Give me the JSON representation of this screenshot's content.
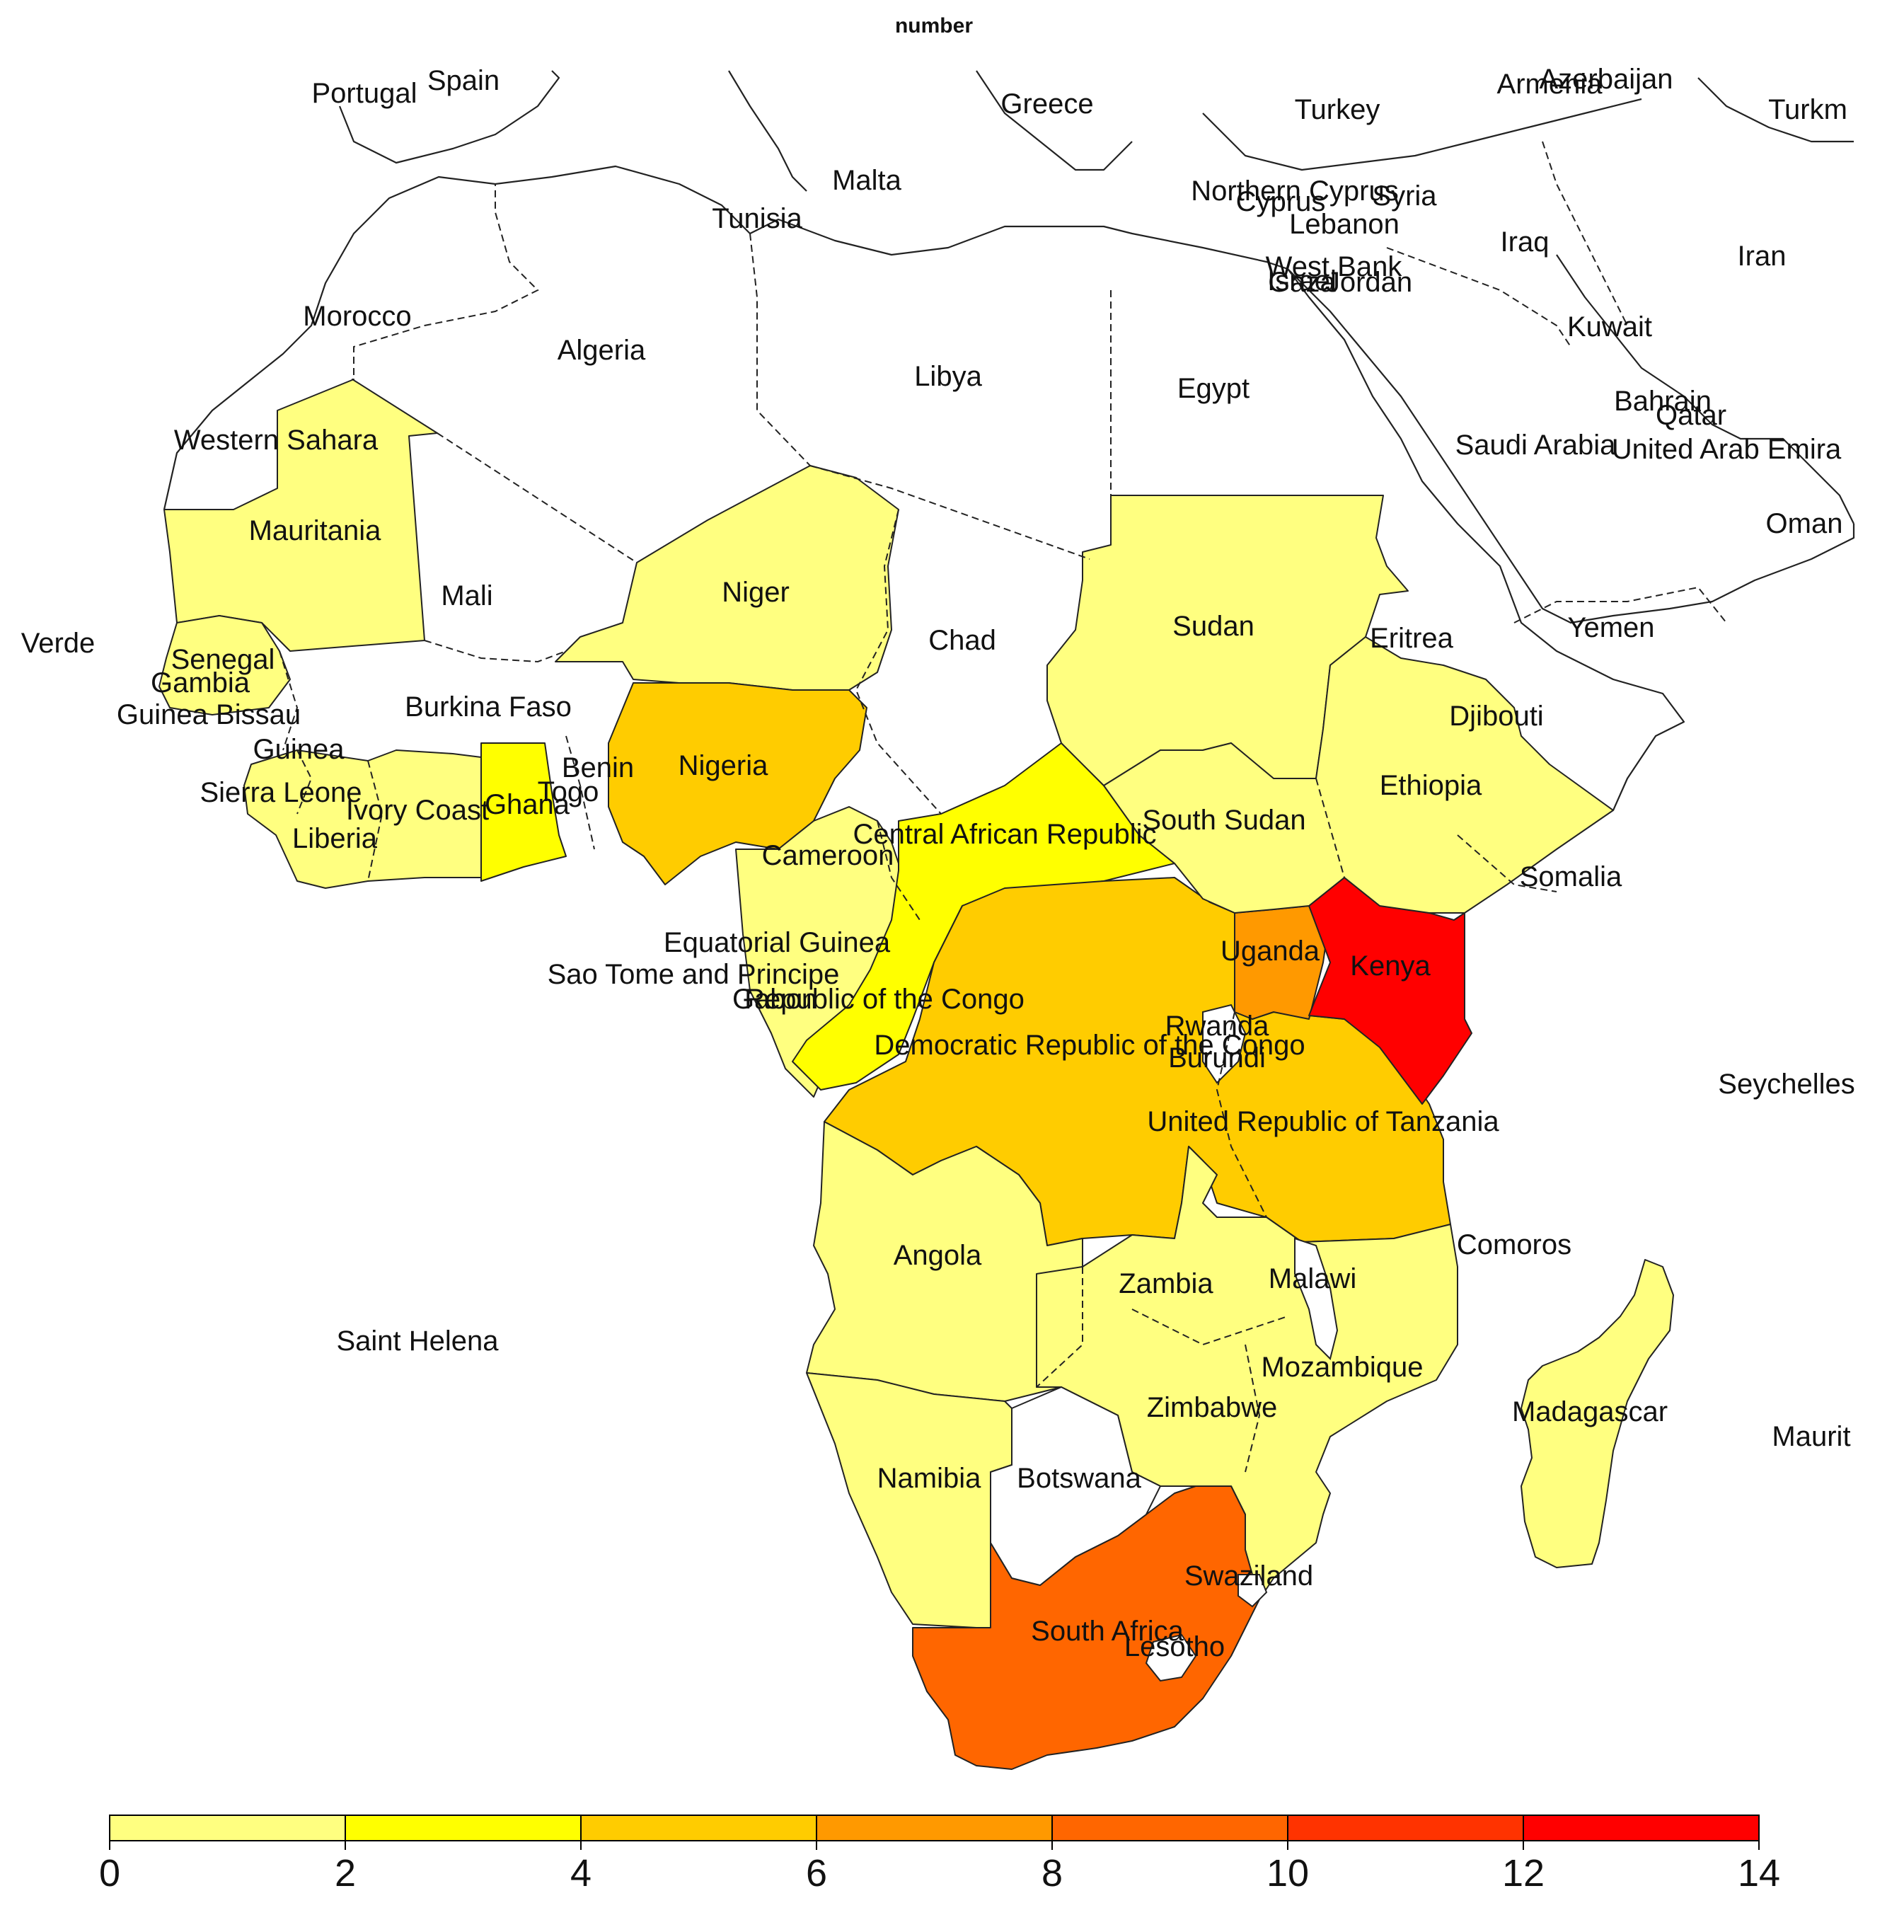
{
  "title": "number",
  "colors": {
    "bin_0_2": "#FFFF80",
    "bin_2_4": "#FFFF00",
    "bin_4_6": "#FFCC00",
    "bin_6_8": "#FF9900",
    "bin_8_10": "#FF6600",
    "bin_10_12": "#FF3300",
    "bin_12_14": "#FF0000",
    "none": "#FFFFFF"
  },
  "legend": {
    "ticks": [
      "0",
      "2",
      "4",
      "6",
      "8",
      "10",
      "12",
      "14"
    ]
  },
  "countries": [
    {
      "name": "Portugal",
      "label": "Portugal"
    },
    {
      "name": "Spain",
      "label": "Spain"
    },
    {
      "name": "Greece",
      "label": "Greece"
    },
    {
      "name": "Turkey",
      "label": "Turkey"
    },
    {
      "name": "Armenia",
      "label": "Armenia"
    },
    {
      "name": "Azerbaijan",
      "label": "Azerbaijan"
    },
    {
      "name": "Turkmenistan",
      "label": "Turkm"
    },
    {
      "name": "Malta",
      "label": "Malta"
    },
    {
      "name": "Tunisia",
      "label": "Tunisia"
    },
    {
      "name": "Northern Cyprus",
      "label": "Northern Cyprus"
    },
    {
      "name": "Cyprus",
      "label": "Cyprus"
    },
    {
      "name": "Syria",
      "label": "Syria"
    },
    {
      "name": "Lebanon",
      "label": "Lebanon"
    },
    {
      "name": "Iraq",
      "label": "Iraq"
    },
    {
      "name": "Iran",
      "label": "Iran"
    },
    {
      "name": "West Bank",
      "label": "West Bank"
    },
    {
      "name": "Israel",
      "label": "Israel"
    },
    {
      "name": "Gaza",
      "label": "Gaza"
    },
    {
      "name": "Jordan",
      "label": "Jordan"
    },
    {
      "name": "Morocco",
      "label": "Morocco"
    },
    {
      "name": "Algeria",
      "label": "Algeria"
    },
    {
      "name": "Libya",
      "label": "Libya"
    },
    {
      "name": "Egypt",
      "label": "Egypt"
    },
    {
      "name": "Kuwait",
      "label": "Kuwait"
    },
    {
      "name": "Bahrain",
      "label": "Bahrain"
    },
    {
      "name": "Qatar",
      "label": "Qatar"
    },
    {
      "name": "Saudi Arabia",
      "label": "Saudi Arabia"
    },
    {
      "name": "United Arab Emirates",
      "label": "United Arab Emira"
    },
    {
      "name": "Western Sahara",
      "label": "Western Sahara"
    },
    {
      "name": "Mauritania",
      "label": "Mauritania"
    },
    {
      "name": "Oman",
      "label": "Oman"
    },
    {
      "name": "Mali",
      "label": "Mali"
    },
    {
      "name": "Niger",
      "label": "Niger"
    },
    {
      "name": "Cape Verde",
      "label": "Verde"
    },
    {
      "name": "Chad",
      "label": "Chad"
    },
    {
      "name": "Sudan",
      "label": "Sudan"
    },
    {
      "name": "Eritrea",
      "label": "Eritrea"
    },
    {
      "name": "Yemen",
      "label": "Yemen"
    },
    {
      "name": "Senegal",
      "label": "Senegal"
    },
    {
      "name": "Gambia",
      "label": "Gambia"
    },
    {
      "name": "Guinea Bissau",
      "label": "Guinea Bissau"
    },
    {
      "name": "Burkina Faso",
      "label": "Burkina Faso"
    },
    {
      "name": "Djibouti",
      "label": "Djibouti"
    },
    {
      "name": "Guinea",
      "label": "Guinea"
    },
    {
      "name": "Benin",
      "label": "Benin"
    },
    {
      "name": "Nigeria",
      "label": "Nigeria"
    },
    {
      "name": "Ethiopia",
      "label": "Ethiopia"
    },
    {
      "name": "Sierra Leone",
      "label": "Sierra Leone"
    },
    {
      "name": "Togo",
      "label": "Togo"
    },
    {
      "name": "Ivory Coast",
      "label": "Ivory Coast"
    },
    {
      "name": "Ghana",
      "label": "Ghana"
    },
    {
      "name": "South Sudan",
      "label": "South Sudan"
    },
    {
      "name": "Liberia",
      "label": "Liberia"
    },
    {
      "name": "Central African Republic",
      "label": "Central African Republic"
    },
    {
      "name": "Cameroon",
      "label": "Cameroon"
    },
    {
      "name": "Somalia",
      "label": "Somalia"
    },
    {
      "name": "Equatorial Guinea",
      "label": "Equatorial Guinea"
    },
    {
      "name": "Uganda",
      "label": "Uganda"
    },
    {
      "name": "Kenya",
      "label": "Kenya"
    },
    {
      "name": "Sao Tome and Principe",
      "label": "Sao Tome and Principe"
    },
    {
      "name": "Gabon",
      "label": "Gabon"
    },
    {
      "name": "Republic of the Congo",
      "label": "Republic of the Congo"
    },
    {
      "name": "Rwanda",
      "label": "Rwanda"
    },
    {
      "name": "Democratic Republic of the Congo",
      "label": "Democratic Republic of the Congo"
    },
    {
      "name": "Burundi",
      "label": "Burundi"
    },
    {
      "name": "Seychelles",
      "label": "Seychelles"
    },
    {
      "name": "United Republic of Tanzania",
      "label": "United Republic of Tanzania"
    },
    {
      "name": "Angola",
      "label": "Angola"
    },
    {
      "name": "Comoros",
      "label": "Comoros"
    },
    {
      "name": "Zambia",
      "label": "Zambia"
    },
    {
      "name": "Malawi",
      "label": "Malawi"
    },
    {
      "name": "Saint Helena",
      "label": "Saint Helena"
    },
    {
      "name": "Mozambique",
      "label": "Mozambique"
    },
    {
      "name": "Zimbabwe",
      "label": "Zimbabwe"
    },
    {
      "name": "Madagascar",
      "label": "Madagascar"
    },
    {
      "name": "Mauritius",
      "label": "Maurit"
    },
    {
      "name": "Namibia",
      "label": "Namibia"
    },
    {
      "name": "Botswana",
      "label": "Botswana"
    },
    {
      "name": "Swaziland",
      "label": "Swaziland"
    },
    {
      "name": "South Africa",
      "label": "South Africa"
    },
    {
      "name": "Lesotho",
      "label": "Lesotho"
    }
  ]
}
